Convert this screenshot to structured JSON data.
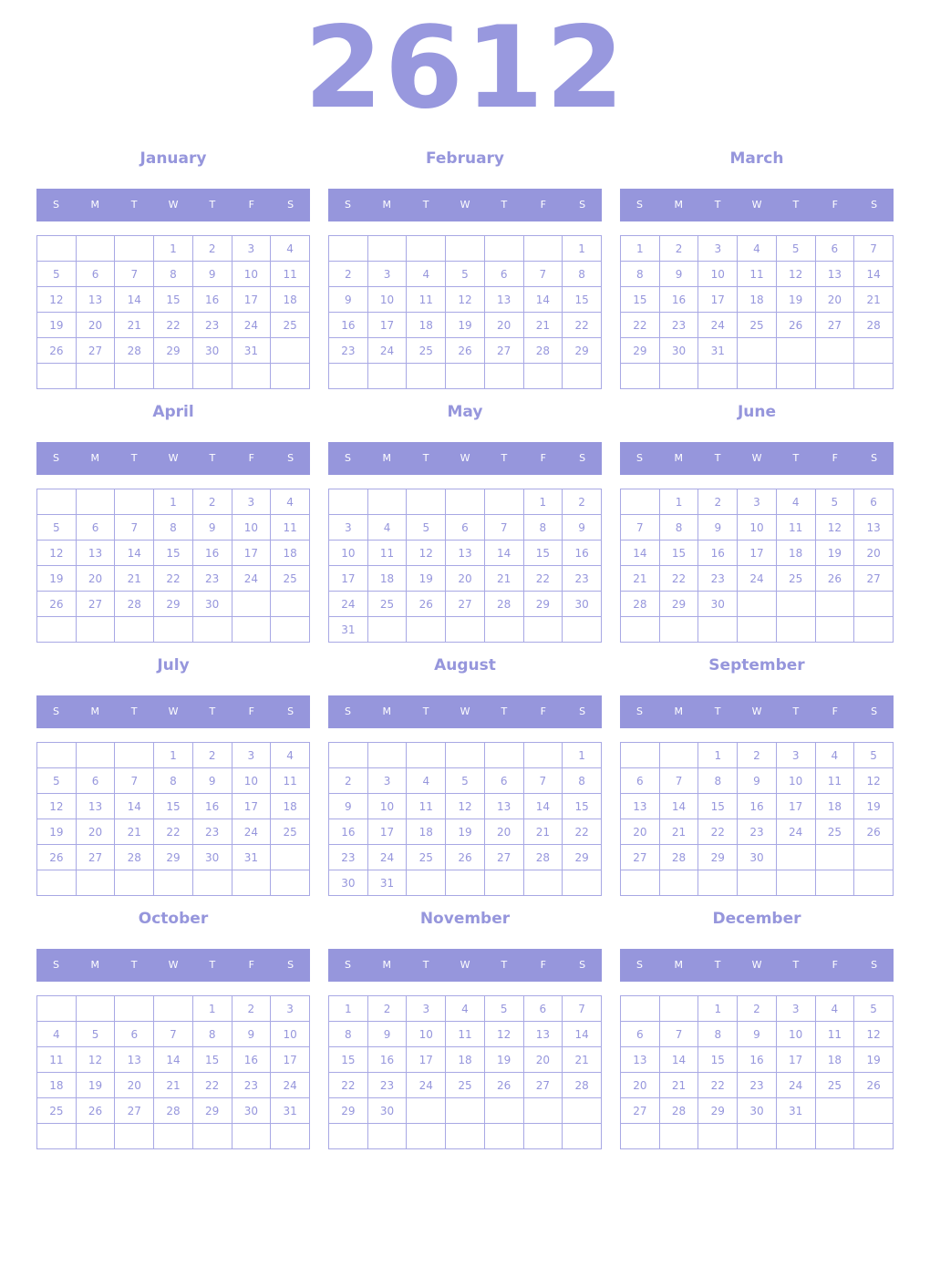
{
  "year": "2612",
  "weekdays": [
    "S",
    "M",
    "T",
    "W",
    "T",
    "F",
    "S"
  ],
  "months": [
    {
      "name": "January",
      "start": 3,
      "days": 31
    },
    {
      "name": "February",
      "start": 6,
      "days": 29
    },
    {
      "name": "March",
      "start": 0,
      "days": 31
    },
    {
      "name": "April",
      "start": 3,
      "days": 30
    },
    {
      "name": "May",
      "start": 5,
      "days": 31
    },
    {
      "name": "June",
      "start": 1,
      "days": 30
    },
    {
      "name": "July",
      "start": 3,
      "days": 31
    },
    {
      "name": "August",
      "start": 6,
      "days": 31
    },
    {
      "name": "September",
      "start": 2,
      "days": 30
    },
    {
      "name": "October",
      "start": 4,
      "days": 31
    },
    {
      "name": "November",
      "start": 0,
      "days": 30
    },
    {
      "name": "December",
      "start": 2,
      "days": 31
    }
  ],
  "colors": {
    "accent": "#9696dc",
    "header_text": "#ffffff",
    "grid": "#a8a8e4"
  }
}
